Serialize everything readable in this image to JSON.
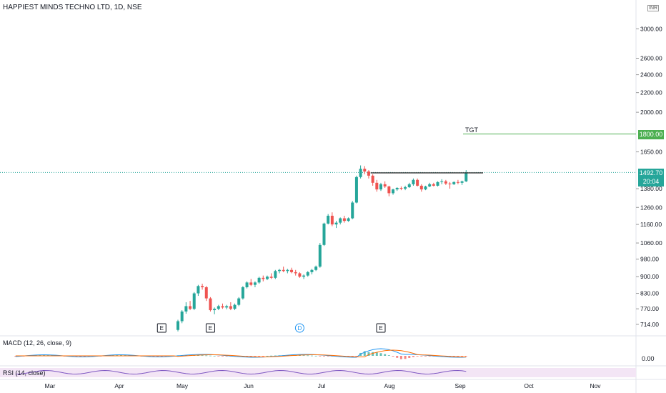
{
  "title": "HAPPIEST MINDS TECHNO LTD, 1D, NSE",
  "currency": "INR",
  "chart_data": {
    "type": "candlestick",
    "y_scale": "log",
    "ylim": [
      680,
      3450
    ],
    "x_tick_labels": [
      "Mar",
      "Apr",
      "May",
      "Jun",
      "Jul",
      "Aug",
      "Sep",
      "Oct",
      "Nov"
    ],
    "y_tick_labels": [
      "3000.00",
      "2600.00",
      "2400.00",
      "2200.00",
      "2000.00",
      "1650.00",
      "1380.00",
      "1260.00",
      "1160.00",
      "1060.00",
      "980.00",
      "900.00",
      "830.00",
      "770.00",
      "714.00"
    ],
    "y_tick_values": [
      3000,
      2600,
      2400,
      2200,
      2000,
      1650,
      1380,
      1260,
      1160,
      1060,
      980,
      900,
      830,
      770,
      714
    ],
    "candles": [
      {
        "o": 695,
        "h": 730,
        "l": 690,
        "c": 725
      },
      {
        "o": 725,
        "h": 765,
        "l": 718,
        "c": 760
      },
      {
        "o": 760,
        "h": 795,
        "l": 752,
        "c": 780
      },
      {
        "o": 780,
        "h": 800,
        "l": 765,
        "c": 770
      },
      {
        "o": 770,
        "h": 835,
        "l": 765,
        "c": 830
      },
      {
        "o": 830,
        "h": 865,
        "l": 820,
        "c": 860
      },
      {
        "o": 860,
        "h": 870,
        "l": 845,
        "c": 855
      },
      {
        "o": 855,
        "h": 860,
        "l": 800,
        "c": 810
      },
      {
        "o": 810,
        "h": 815,
        "l": 760,
        "c": 765
      },
      {
        "o": 765,
        "h": 775,
        "l": 750,
        "c": 770
      },
      {
        "o": 770,
        "h": 785,
        "l": 765,
        "c": 780
      },
      {
        "o": 780,
        "h": 790,
        "l": 770,
        "c": 775
      },
      {
        "o": 775,
        "h": 785,
        "l": 768,
        "c": 780
      },
      {
        "o": 780,
        "h": 795,
        "l": 765,
        "c": 770
      },
      {
        "o": 770,
        "h": 790,
        "l": 765,
        "c": 785
      },
      {
        "o": 785,
        "h": 815,
        "l": 780,
        "c": 810
      },
      {
        "o": 810,
        "h": 860,
        "l": 805,
        "c": 855
      },
      {
        "o": 855,
        "h": 880,
        "l": 850,
        "c": 875
      },
      {
        "o": 875,
        "h": 890,
        "l": 860,
        "c": 865
      },
      {
        "o": 865,
        "h": 880,
        "l": 855,
        "c": 875
      },
      {
        "o": 875,
        "h": 900,
        "l": 870,
        "c": 895
      },
      {
        "o": 895,
        "h": 905,
        "l": 880,
        "c": 890
      },
      {
        "o": 890,
        "h": 905,
        "l": 885,
        "c": 900
      },
      {
        "o": 900,
        "h": 915,
        "l": 890,
        "c": 895
      },
      {
        "o": 895,
        "h": 930,
        "l": 890,
        "c": 925
      },
      {
        "o": 925,
        "h": 935,
        "l": 915,
        "c": 930
      },
      {
        "o": 930,
        "h": 945,
        "l": 920,
        "c": 925
      },
      {
        "o": 925,
        "h": 935,
        "l": 915,
        "c": 930
      },
      {
        "o": 930,
        "h": 940,
        "l": 915,
        "c": 920
      },
      {
        "o": 920,
        "h": 930,
        "l": 905,
        "c": 915
      },
      {
        "o": 915,
        "h": 920,
        "l": 895,
        "c": 900
      },
      {
        "o": 900,
        "h": 910,
        "l": 890,
        "c": 905
      },
      {
        "o": 905,
        "h": 925,
        "l": 900,
        "c": 920
      },
      {
        "o": 920,
        "h": 935,
        "l": 910,
        "c": 930
      },
      {
        "o": 930,
        "h": 950,
        "l": 925,
        "c": 945
      },
      {
        "o": 945,
        "h": 1060,
        "l": 940,
        "c": 1050
      },
      {
        "o": 1050,
        "h": 1170,
        "l": 1045,
        "c": 1165
      },
      {
        "o": 1165,
        "h": 1220,
        "l": 1160,
        "c": 1210
      },
      {
        "o": 1210,
        "h": 1230,
        "l": 1150,
        "c": 1160
      },
      {
        "o": 1160,
        "h": 1180,
        "l": 1140,
        "c": 1170
      },
      {
        "o": 1170,
        "h": 1200,
        "l": 1160,
        "c": 1195
      },
      {
        "o": 1195,
        "h": 1210,
        "l": 1170,
        "c": 1180
      },
      {
        "o": 1180,
        "h": 1200,
        "l": 1175,
        "c": 1195
      },
      {
        "o": 1195,
        "h": 1300,
        "l": 1190,
        "c": 1290
      },
      {
        "o": 1290,
        "h": 1470,
        "l": 1285,
        "c": 1460
      },
      {
        "o": 1460,
        "h": 1545,
        "l": 1450,
        "c": 1520
      },
      {
        "o": 1520,
        "h": 1540,
        "l": 1480,
        "c": 1500
      },
      {
        "o": 1500,
        "h": 1510,
        "l": 1450,
        "c": 1470
      },
      {
        "o": 1470,
        "h": 1480,
        "l": 1400,
        "c": 1420
      },
      {
        "o": 1420,
        "h": 1440,
        "l": 1360,
        "c": 1375
      },
      {
        "o": 1375,
        "h": 1420,
        "l": 1365,
        "c": 1410
      },
      {
        "o": 1410,
        "h": 1430,
        "l": 1385,
        "c": 1395
      },
      {
        "o": 1395,
        "h": 1400,
        "l": 1330,
        "c": 1350
      },
      {
        "o": 1350,
        "h": 1380,
        "l": 1340,
        "c": 1375
      },
      {
        "o": 1375,
        "h": 1390,
        "l": 1365,
        "c": 1385
      },
      {
        "o": 1385,
        "h": 1395,
        "l": 1370,
        "c": 1380
      },
      {
        "o": 1380,
        "h": 1400,
        "l": 1370,
        "c": 1390
      },
      {
        "o": 1390,
        "h": 1420,
        "l": 1385,
        "c": 1410
      },
      {
        "o": 1410,
        "h": 1450,
        "l": 1400,
        "c": 1440
      },
      {
        "o": 1440,
        "h": 1450,
        "l": 1395,
        "c": 1400
      },
      {
        "o": 1400,
        "h": 1410,
        "l": 1360,
        "c": 1375
      },
      {
        "o": 1375,
        "h": 1400,
        "l": 1370,
        "c": 1395
      },
      {
        "o": 1395,
        "h": 1420,
        "l": 1390,
        "c": 1410
      },
      {
        "o": 1410,
        "h": 1420,
        "l": 1395,
        "c": 1400
      },
      {
        "o": 1400,
        "h": 1430,
        "l": 1395,
        "c": 1425
      },
      {
        "o": 1425,
        "h": 1445,
        "l": 1410,
        "c": 1430
      },
      {
        "o": 1430,
        "h": 1440,
        "l": 1405,
        "c": 1415
      },
      {
        "o": 1415,
        "h": 1425,
        "l": 1380,
        "c": 1410
      },
      {
        "o": 1410,
        "h": 1430,
        "l": 1405,
        "c": 1425
      },
      {
        "o": 1425,
        "h": 1440,
        "l": 1410,
        "c": 1420
      },
      {
        "o": 1420,
        "h": 1435,
        "l": 1405,
        "c": 1430
      },
      {
        "o": 1430,
        "h": 1510,
        "l": 1425,
        "c": 1492.7
      }
    ],
    "resistance_level": 1490,
    "target": {
      "label": "TGT",
      "value": 1800,
      "price_label": "1800.00"
    },
    "last_price": {
      "value": 1492.7,
      "label": "1492.70",
      "countdown": "20:04"
    },
    "event_markers": [
      {
        "text": "E",
        "bar": -4,
        "style": "box"
      },
      {
        "text": "E",
        "bar": 8,
        "style": "box"
      },
      {
        "text": "D",
        "bar": 30,
        "style": "circle"
      },
      {
        "text": "E",
        "bar": 50,
        "style": "box"
      }
    ],
    "macd": {
      "label": "MACD (12, 26, close, 9)",
      "zero_label": "0.00"
    },
    "rsi": {
      "label": "RSI (14, close)"
    }
  },
  "colors": {
    "up": "#26a69a",
    "down": "#ef5350",
    "target": "#4caf50",
    "last": "#26a69a",
    "macd_line": "#2196f3",
    "signal_line": "#ff6d00",
    "rsi_line": "#7e57c2",
    "rsi_band": "#f3e5f5"
  }
}
